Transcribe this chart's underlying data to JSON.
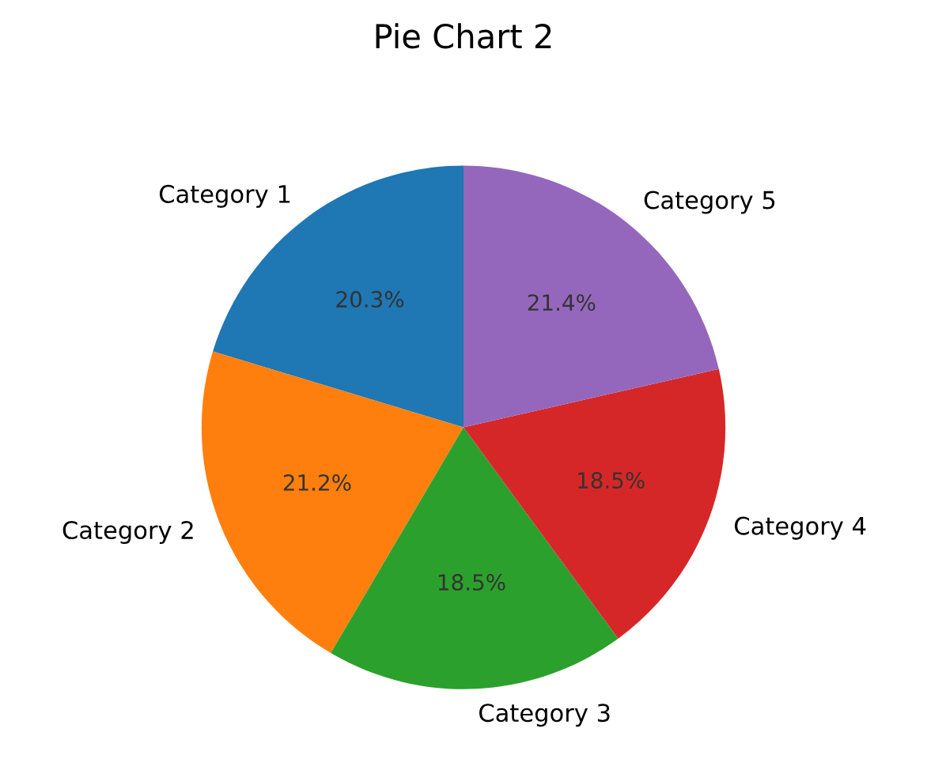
{
  "chart_data": {
    "type": "pie",
    "title": "Pie Chart 2",
    "categories": [
      "Category 1",
      "Category 2",
      "Category 3",
      "Category 4",
      "Category 5"
    ],
    "values": [
      20.3,
      21.2,
      18.5,
      18.5,
      21.4
    ],
    "value_labels": [
      "20.3%",
      "21.2%",
      "18.5%",
      "18.5%",
      "21.4%"
    ],
    "colors": [
      "#1f77b4",
      "#ff7f0e",
      "#2ca02c",
      "#d62728",
      "#9467bd"
    ]
  }
}
